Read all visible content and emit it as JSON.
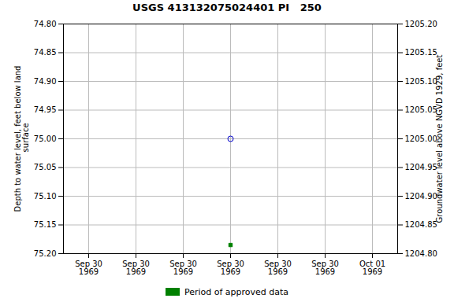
{
  "chart_data": {
    "type": "scatter",
    "title": "USGS 413132075024401 PI   250",
    "categories": [
      "Sep 30\n1969",
      "Sep 30\n1969",
      "Sep 30\n1969",
      "Sep 30\n1969",
      "Sep 30\n1969",
      "Sep 30\n1969",
      "Oct 01\n1969"
    ],
    "ylabel": "Depth to water level, feet below land\n surface",
    "y2label": "Groundwater level above NGVD 1929, feet",
    "ylim": [
      75.2,
      74.8
    ],
    "yticks": [
      {
        "value": 74.8,
        "label": "74.80"
      },
      {
        "value": 74.85,
        "label": "74.85"
      },
      {
        "value": 74.9,
        "label": "74.90"
      },
      {
        "value": 74.95,
        "label": "74.95"
      },
      {
        "value": 75.0,
        "label": "75.00"
      },
      {
        "value": 75.05,
        "label": "75.05"
      },
      {
        "value": 75.1,
        "label": "75.10"
      },
      {
        "value": 75.15,
        "label": "75.15"
      },
      {
        "value": 75.2,
        "label": "75.20"
      }
    ],
    "y2lim": [
      1204.8,
      1205.2
    ],
    "y2ticks": [
      {
        "value": 1205.2,
        "label": "1205.20"
      },
      {
        "value": 1205.15,
        "label": "1205.15"
      },
      {
        "value": 1205.1,
        "label": "1205.10"
      },
      {
        "value": 1205.05,
        "label": "1205.05"
      },
      {
        "value": 1205.0,
        "label": "1205.00"
      },
      {
        "value": 1204.95,
        "label": "1204.95"
      },
      {
        "value": 1204.9,
        "label": "1204.90"
      },
      {
        "value": 1204.85,
        "label": "1204.85"
      },
      {
        "value": 1204.8,
        "label": "1204.80"
      }
    ],
    "series": [
      {
        "color": "#0000cc",
        "marker": "open_circle",
        "values": [
          null,
          null,
          null,
          75.0,
          null,
          null,
          null
        ]
      },
      {
        "name": "Period of approved data",
        "color": "#008000",
        "marker": "square",
        "values": [
          null,
          null,
          null,
          75.185,
          null,
          null,
          null
        ]
      }
    ],
    "grid": true,
    "legend": "bottom"
  }
}
